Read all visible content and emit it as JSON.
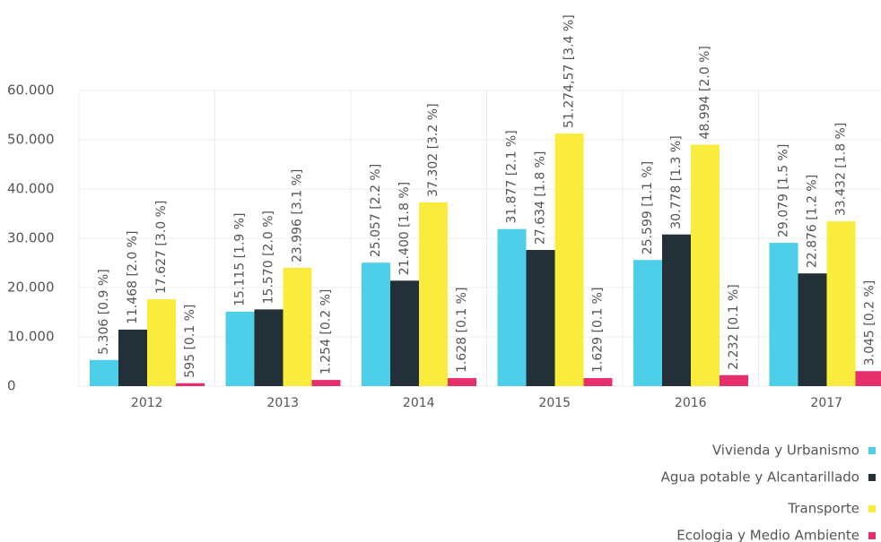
{
  "chart_data": {
    "type": "bar",
    "categories": [
      "2012",
      "2013",
      "2014",
      "2015",
      "2016",
      "2017"
    ],
    "series": [
      {
        "name": "Vivienda y Urbanismo",
        "color": "#4dcfea",
        "values": [
          5306,
          15115,
          25057,
          31877,
          25599,
          29079
        ],
        "value_labels": [
          "5.306 [0.9 %]",
          "15.115 [1.9 %]",
          "25.057 [2.2 %]",
          "31.877 [2.1 %]",
          "25.599 [1.1 %]",
          "29.079 [1.5 %]"
        ]
      },
      {
        "name": "Agua potable y Alcantarillado",
        "color": "#233038",
        "values": [
          11468,
          15570,
          21400,
          27634,
          30778,
          22876
        ],
        "value_labels": [
          "11.468 [2.0 %]",
          "15.570 [2.0 %]",
          "21.400 [1.8 %]",
          "27.634 [1.8 %]",
          "30.778 [1.3 %]",
          "22.876 [1.2 %]"
        ]
      },
      {
        "name": "Transporte",
        "color": "#f9ec3c",
        "values": [
          17627,
          23996,
          37302,
          51274.57,
          48994,
          33432
        ],
        "value_labels": [
          "17.627 [3.0 %]",
          "23.996 [3.1 %]",
          "37.302 [3.2 %]",
          "51.274,57 [3.4 %]",
          "48.994 [2.0 %]",
          "33.432 [1.8 %]"
        ]
      },
      {
        "name": "Ecologia y Medio Ambiente",
        "color": "#e6306b",
        "values": [
          595,
          1254,
          1628,
          1629,
          2232,
          3045
        ],
        "value_labels": [
          "595 [0.1 %]",
          "1.254 [0.2 %]",
          "1.628 [0.1 %]",
          "1.629 [0.1 %]",
          "2.232 [0.1 %]",
          "3.045 [0.2 %]"
        ]
      }
    ],
    "ylim": [
      0,
      60000
    ],
    "yticks": [
      0,
      {
        "value": 10000,
        "label": "10.000"
      },
      {
        "value": 20000,
        "label": "20.000"
      },
      {
        "value": 30000,
        "label": "30.000"
      },
      {
        "value": 40000,
        "label": "40.000"
      },
      {
        "value": 50000,
        "label": "50.000"
      },
      {
        "value": 60000,
        "label": "60.000"
      }
    ],
    "grid": true,
    "legend": "bottom-right"
  }
}
